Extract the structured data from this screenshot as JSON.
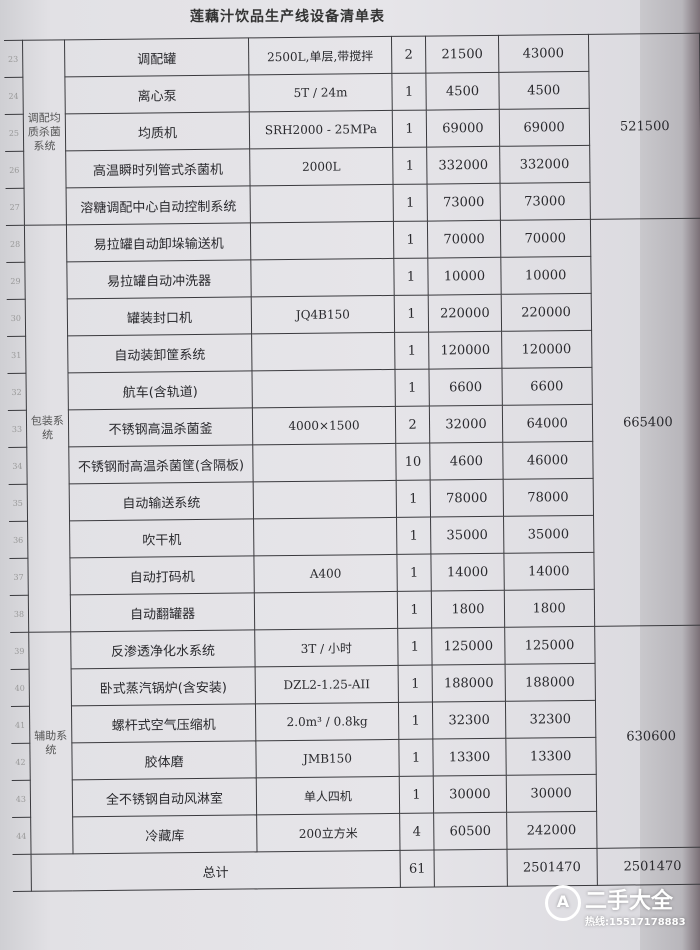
{
  "title": "莲藕汁饮品生产线设备清单表",
  "groups": [
    {
      "system": "调配均质杀菌系统",
      "subtotal": "521500",
      "rows": [
        {
          "no": "23",
          "name": "调配罐",
          "spec": "2500L,单层,带搅拌",
          "qty": "2",
          "price": "21500",
          "total": "43000"
        },
        {
          "no": "24",
          "name": "离心泵",
          "spec": "5T / 24m",
          "qty": "1",
          "price": "4500",
          "total": "4500"
        },
        {
          "no": "25",
          "name": "均质机",
          "spec": "SRH2000 - 25MPa",
          "qty": "1",
          "price": "69000",
          "total": "69000"
        },
        {
          "no": "26",
          "name": "高温瞬时列管式杀菌机",
          "spec": "2000L",
          "qty": "1",
          "price": "332000",
          "total": "332000"
        },
        {
          "no": "27",
          "name": "溶糖调配中心自动控制系统",
          "spec": "",
          "qty": "1",
          "price": "73000",
          "total": "73000"
        }
      ]
    },
    {
      "system": "包装系统",
      "subtotal": "665400",
      "rows": [
        {
          "no": "28",
          "name": "易拉罐自动卸垛输送机",
          "spec": "",
          "qty": "1",
          "price": "70000",
          "total": "70000"
        },
        {
          "no": "29",
          "name": "易拉罐自动冲洗器",
          "spec": "",
          "qty": "1",
          "price": "10000",
          "total": "10000"
        },
        {
          "no": "30",
          "name": "罐装封口机",
          "spec": "JQ4B150",
          "qty": "1",
          "price": "220000",
          "total": "220000"
        },
        {
          "no": "31",
          "name": "自动装卸筐系统",
          "spec": "",
          "qty": "1",
          "price": "120000",
          "total": "120000"
        },
        {
          "no": "32",
          "name": "航车(含轨道)",
          "spec": "",
          "qty": "1",
          "price": "6600",
          "total": "6600"
        },
        {
          "no": "33",
          "name": "不锈钢高温杀菌釜",
          "spec": "4000×1500",
          "qty": "2",
          "price": "32000",
          "total": "64000"
        },
        {
          "no": "34",
          "name": "不锈钢耐高温杀菌筐(含隔板)",
          "spec": "",
          "qty": "10",
          "price": "4600",
          "total": "46000"
        },
        {
          "no": "35",
          "name": "自动输送系统",
          "spec": "",
          "qty": "1",
          "price": "78000",
          "total": "78000"
        },
        {
          "no": "36",
          "name": "吹干机",
          "spec": "",
          "qty": "1",
          "price": "35000",
          "total": "35000"
        },
        {
          "no": "37",
          "name": "自动打码机",
          "spec": "A400",
          "qty": "1",
          "price": "14000",
          "total": "14000"
        },
        {
          "no": "38",
          "name": "自动翻罐器",
          "spec": "",
          "qty": "1",
          "price": "1800",
          "total": "1800"
        }
      ]
    },
    {
      "system": "辅助系统",
      "subtotal": "630600",
      "rows": [
        {
          "no": "39",
          "name": "反渗透净化水系统",
          "spec": "3T / 小时",
          "qty": "1",
          "price": "125000",
          "total": "125000"
        },
        {
          "no": "40",
          "name": "卧式蒸汽锅炉(含安装)",
          "spec": "DZL2-1.25-AII",
          "qty": "1",
          "price": "188000",
          "total": "188000"
        },
        {
          "no": "41",
          "name": "螺杆式空气压缩机",
          "spec": "2.0m³ / 0.8kg",
          "qty": "1",
          "price": "32300",
          "total": "32300"
        },
        {
          "no": "42",
          "name": "胶体磨",
          "spec": "JMB150",
          "qty": "1",
          "price": "13300",
          "total": "13300"
        },
        {
          "no": "43",
          "name": "全不锈钢自动风淋室",
          "spec": "单人四机",
          "qty": "1",
          "price": "30000",
          "total": "30000"
        },
        {
          "no": "44",
          "name": "冷藏库",
          "spec": "200立方米",
          "qty": "4",
          "price": "60500",
          "total": "242000"
        }
      ]
    }
  ],
  "footer": {
    "label": "总计",
    "qty": "61",
    "total": "2501470",
    "grand_total": "2501470"
  },
  "watermark": {
    "brand": "二手大全",
    "hotline": "热线:15517178883"
  }
}
